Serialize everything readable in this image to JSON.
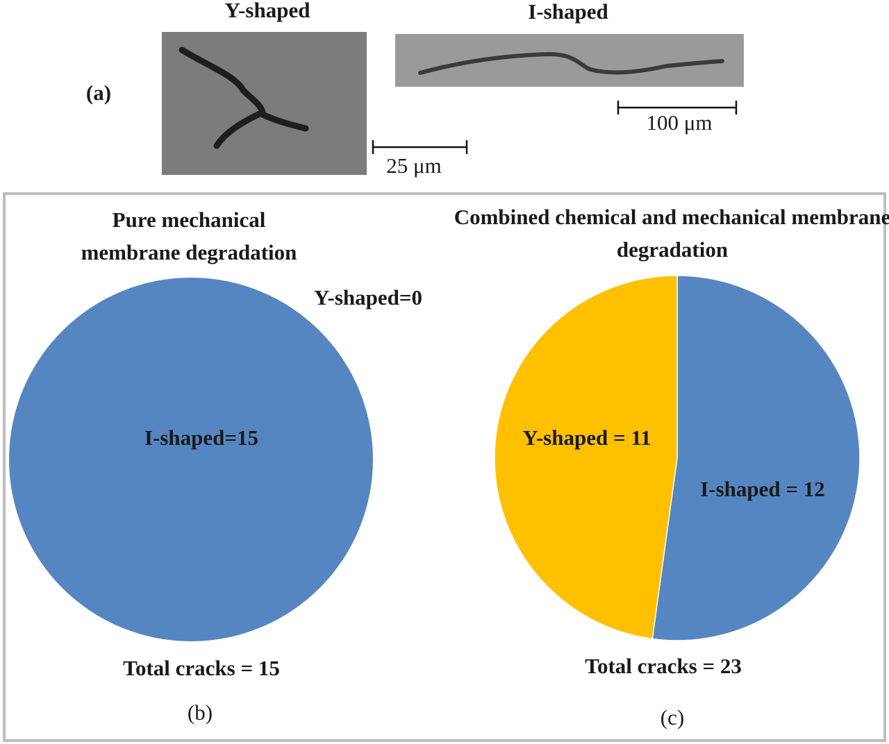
{
  "panel_a": {
    "label": "(a)",
    "images": [
      {
        "title": "Y-shaped",
        "scale": "25 μm"
      },
      {
        "title": "I-shaped",
        "scale": "100 μm"
      }
    ]
  },
  "chart_data": [
    {
      "type": "pie",
      "title": "Pure mechanical membrane degradation",
      "values": [
        15,
        0
      ],
      "value_labels": [
        "I-shaped=15",
        "Y-shaped=0"
      ],
      "colors": [
        "#5586c2",
        "#ffc000"
      ],
      "annotation": "Total cracks = 15",
      "panel_label": "(b)"
    },
    {
      "type": "pie",
      "title": "Combined chemical and mechanical membrane degradation",
      "values": [
        12,
        11
      ],
      "value_labels": [
        "I-shaped = 12",
        "Y-shaped = 11"
      ],
      "colors": [
        "#5586c2",
        "#ffc000"
      ],
      "annotation": "Total cracks = 23",
      "panel_label": "(c)"
    }
  ]
}
